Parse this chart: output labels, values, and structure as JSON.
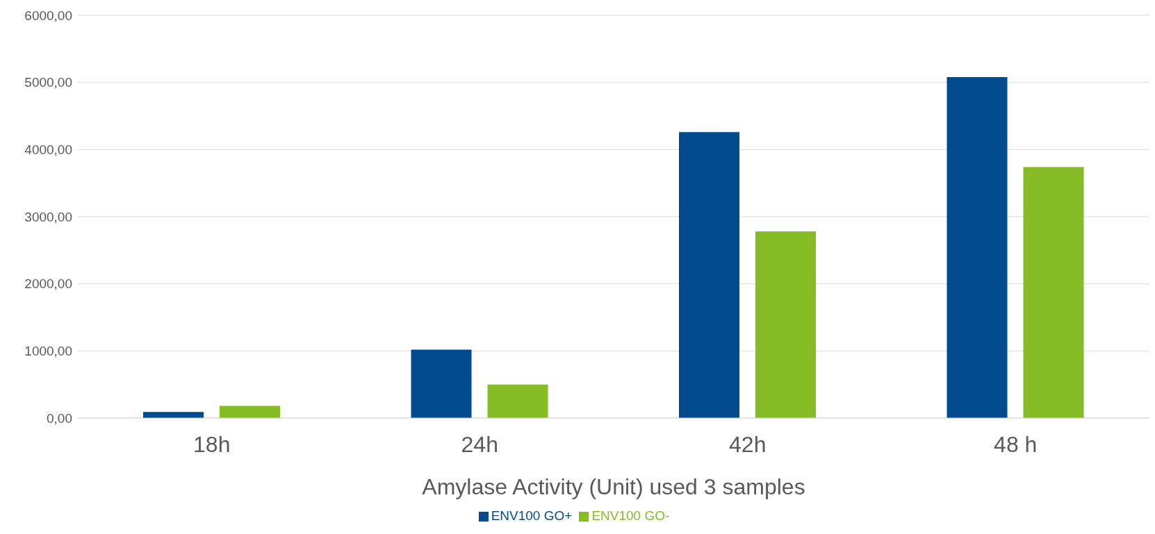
{
  "chart_data": {
    "type": "bar",
    "xlabel": "Amylase Activity (Unit) used 3 samples",
    "categories": [
      "18h",
      "24h",
      "42h",
      "48 h"
    ],
    "series": [
      {
        "name": "ENV100 GO+",
        "color": "#004b8d",
        "values": [
          90,
          1020,
          4260,
          5080
        ]
      },
      {
        "name": "ENV100 GO-",
        "color": "#86bc25",
        "values": [
          180,
          500,
          2780,
          3740
        ]
      }
    ],
    "ylim": [
      0,
      6000
    ],
    "yticks": [
      {
        "value": 0,
        "label": "0,00"
      },
      {
        "value": 1000,
        "label": "1000,00"
      },
      {
        "value": 2000,
        "label": "2000,00"
      },
      {
        "value": 3000,
        "label": "3000,00"
      },
      {
        "value": 4000,
        "label": "4000,00"
      },
      {
        "value": 5000,
        "label": "5000,00"
      },
      {
        "value": 6000,
        "label": "6000,00"
      }
    ],
    "grid": "y",
    "legend": "bottom"
  }
}
